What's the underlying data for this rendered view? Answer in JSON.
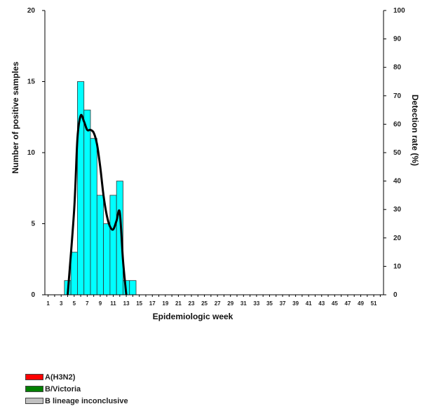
{
  "chart_data": {
    "type": "bar",
    "xlabel": "Epidemiologic week",
    "ylabel": "Number of positive samples",
    "y2label": "Detection rate (%)",
    "ylim": [
      0,
      20
    ],
    "y2lim": [
      0,
      100
    ],
    "yticks": [
      0,
      5,
      10,
      15,
      20
    ],
    "y2ticks": [
      0,
      10,
      20,
      30,
      40,
      50,
      60,
      70,
      80,
      90,
      100
    ],
    "xticks": [
      1,
      3,
      5,
      7,
      9,
      11,
      13,
      15,
      17,
      19,
      21,
      23,
      25,
      27,
      29,
      31,
      33,
      35,
      37,
      39,
      41,
      43,
      45,
      47,
      49,
      51
    ],
    "weeks": [
      4,
      5,
      6,
      7,
      8,
      9,
      10,
      11,
      12,
      13,
      14
    ],
    "bar_color": "#00FFFF",
    "line_color": "#000000",
    "series": [
      {
        "name": "",
        "values": [
          1,
          3,
          15,
          13,
          11,
          7,
          5,
          7,
          8,
          1,
          1
        ]
      }
    ],
    "detection_rate": {
      "x": [
        4,
        5,
        5.5,
        6,
        6.5,
        7,
        7.5,
        8,
        8.5,
        9,
        9.5,
        10,
        10.5,
        11,
        11.5,
        12,
        12.5,
        13
      ],
      "y": [
        0,
        30,
        55,
        63,
        61,
        58,
        58,
        57,
        53,
        45,
        35,
        28,
        24,
        23,
        26,
        29,
        12,
        0
      ]
    },
    "legend": [
      {
        "label": "A(H3N2)",
        "color": "#FF0000"
      },
      {
        "label": "B/Victoria",
        "color": "#008000"
      },
      {
        "label": "B lineage inconclusive",
        "color": "#C0C0C0"
      }
    ]
  }
}
